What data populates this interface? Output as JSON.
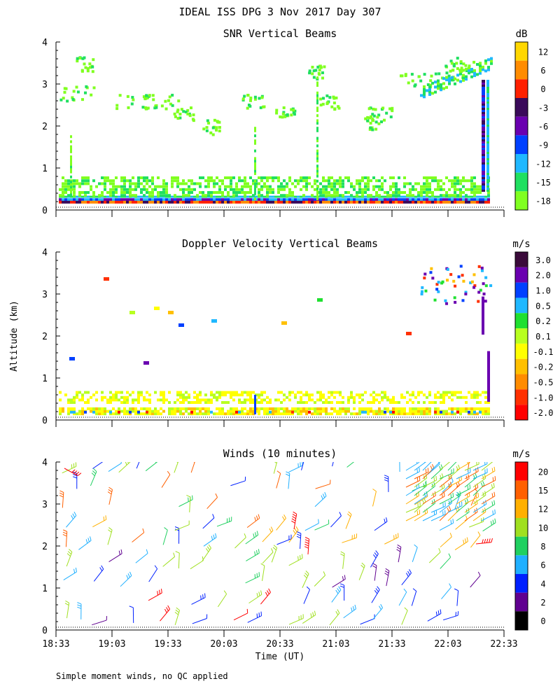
{
  "header": {
    "title": "IDEAL ISS DPG    3 Nov 2017 Day 307"
  },
  "axes": {
    "ylabel": "Altitude (km)",
    "xlabel": "Time (UT)",
    "x_ticks": [
      "18:33",
      "19:03",
      "19:33",
      "20:03",
      "20:33",
      "21:03",
      "21:33",
      "22:03",
      "22:33"
    ],
    "y_ticks": [
      "0",
      "1",
      "2",
      "3",
      "4"
    ],
    "xlim": [
      "18:33",
      "22:33"
    ],
    "ylim": [
      0,
      4
    ]
  },
  "footer": {
    "note": "Simple moment winds, no QC applied"
  },
  "chart_data": [
    {
      "type": "heatmap",
      "title": "SNR Vertical Beams",
      "colorbar": {
        "unit": "dB",
        "labels": [
          "12",
          "6",
          "0",
          "-3",
          "-6",
          "-9",
          "-12",
          "-15",
          "-18"
        ],
        "colors": [
          "#ffd700",
          "#ff8c00",
          "#ff2000",
          "#3a0a5a",
          "#6a00b0",
          "#0040ff",
          "#20b8ff",
          "#20e060",
          "#80ff20"
        ]
      },
      "description_bands": [
        {
          "alt_range": [
            0.15,
            0.3
          ],
          "level": "-6 to 12",
          "time_range": [
            "18:33",
            "22:10"
          ]
        },
        {
          "alt_range": [
            0.3,
            0.8
          ],
          "level": "-15 to -18",
          "time_range": [
            "18:33",
            "22:10"
          ]
        }
      ]
    },
    {
      "type": "heatmap",
      "title": "Doppler Velocity Vertical Beams",
      "colorbar": {
        "unit": "m/s",
        "labels": [
          "3.0",
          "2.0",
          "1.0",
          "0.5",
          "0.2",
          "0.1",
          "-0.1",
          "-0.2",
          "-0.5",
          "-1.0",
          "-2.0"
        ],
        "colors": [
          "#3a0a3a",
          "#6a00b0",
          "#0040ff",
          "#20b8ff",
          "#20e030",
          "#b8ff20",
          "#ffff00",
          "#ffc000",
          "#ff8c00",
          "#ff3000",
          "#ff0000"
        ]
      }
    },
    {
      "type": "scatter",
      "title": "Winds (10 minutes)",
      "colorbar": {
        "unit": "m/s",
        "labels": [
          "20",
          "15",
          "12",
          "10",
          "8",
          "6",
          "4",
          "2",
          "0"
        ],
        "colors": [
          "#ff0000",
          "#ff6000",
          "#ffb000",
          "#a0e020",
          "#20d060",
          "#20b0ff",
          "#0020ff",
          "#600090",
          "#000000"
        ]
      }
    }
  ]
}
